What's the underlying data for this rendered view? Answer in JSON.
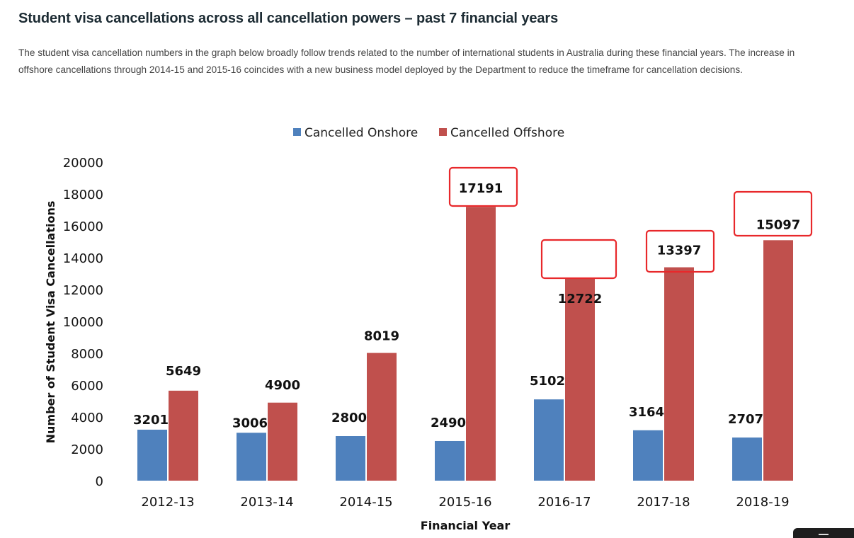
{
  "page": {
    "title": "Student visa cancellations across all cancellation powers – past 7 financial years",
    "intro": "The student visa cancellation numbers in the graph below broadly follow trends related to the number of international students in Australia during these financial years. The increase in offshore cancellations through 2014-15 and 2015-16 coincides with a new business model deployed by the Department to reduce the timeframe for cancellation decisions."
  },
  "chart_data": {
    "type": "bar",
    "title": "",
    "xlabel": "Financial Year",
    "ylabel": "Number of Student Visa Cancellations",
    "ylim": [
      0,
      20000
    ],
    "yticks": [
      0,
      2000,
      4000,
      6000,
      8000,
      10000,
      12000,
      14000,
      16000,
      18000,
      20000
    ],
    "grid": false,
    "legend_position": "top-center",
    "categories": [
      "2012-13",
      "2013-14",
      "2014-15",
      "2015-16",
      "2016-17",
      "2017-18",
      "2018-19"
    ],
    "series": [
      {
        "name": "Cancelled Onshore",
        "color": "#4f81bd",
        "values": [
          3201,
          3006,
          2800,
          2490,
          5102,
          3164,
          2707
        ]
      },
      {
        "name": "Cancelled Offshore",
        "color": "#c0504d",
        "values": [
          5649,
          4900,
          8019,
          17191,
          12722,
          13397,
          15097
        ]
      }
    ],
    "highlighted": {
      "series": "Cancelled Offshore",
      "categories": [
        "2015-16",
        "2016-17",
        "2017-18",
        "2018-19"
      ],
      "box_color": "#e8282b"
    }
  }
}
